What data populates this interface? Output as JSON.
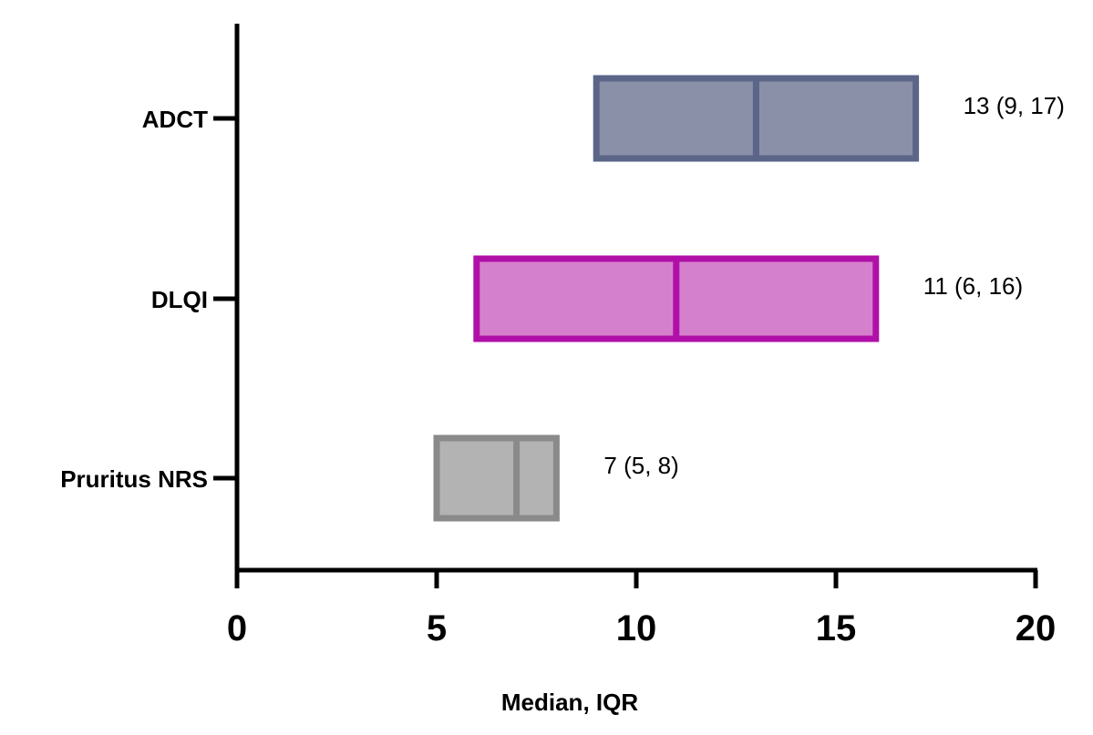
{
  "chart_data": {
    "type": "box",
    "orientation": "horizontal",
    "xlabel": "Median, IQR",
    "xlim": [
      0,
      20
    ],
    "xticks": [
      0,
      5,
      10,
      15,
      20
    ],
    "xtick_labels": [
      "0",
      "5",
      "10",
      "15",
      "20"
    ],
    "grid": false,
    "categories": [
      "ADCT",
      "DLQI",
      "Pruritus NRS"
    ],
    "series": [
      {
        "category": "ADCT",
        "q1": 9,
        "median": 13,
        "q3": 17,
        "annotation": "13 (9, 17)",
        "fill": "#8a90a8",
        "stroke": "#5a6588"
      },
      {
        "category": "DLQI",
        "q1": 6,
        "median": 11,
        "q3": 16,
        "annotation": "11 (6, 16)",
        "fill": "#d580cc",
        "stroke": "#b010a8"
      },
      {
        "category": "Pruritus NRS",
        "q1": 5,
        "median": 7,
        "q3": 8,
        "annotation": "7 (5, 8)",
        "fill": "#b3b3b3",
        "stroke": "#8a8a8a"
      }
    ]
  }
}
